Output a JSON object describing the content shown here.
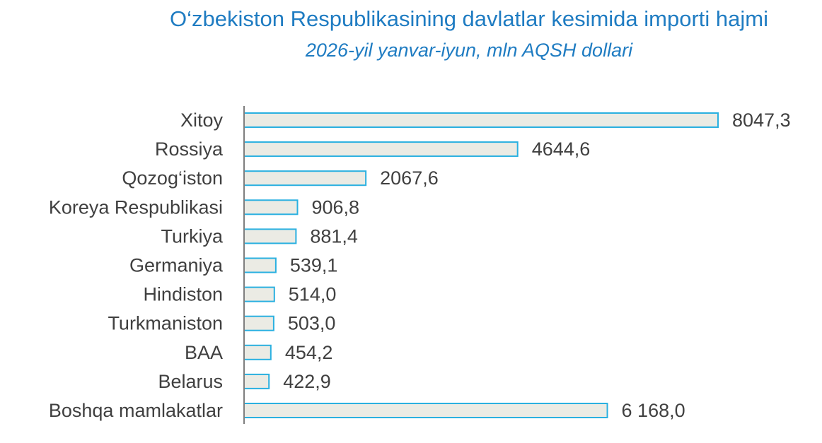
{
  "chart_data": {
    "type": "bar",
    "orientation": "horizontal",
    "title": "O‘zbekiston Respublikasining davlatlar kesimida importi hajmi",
    "subtitle": "2026-yil yanvar-iyun, mln AQSH dollari",
    "categories": [
      "Xitoy",
      "Rossiya",
      "Qozog‘iston",
      "Koreya Respublikasi",
      "Turkiya",
      "Germaniya",
      "Hindiston",
      "Turkmaniston",
      "BAA",
      "Belarus",
      "Boshqa mamlakatlar"
    ],
    "values": [
      8047.3,
      4644.6,
      2067.6,
      906.8,
      881.4,
      539.1,
      514.0,
      503.0,
      454.2,
      422.9,
      6168.0
    ],
    "value_labels": [
      "8047,3",
      "4644,6",
      "2067,6",
      "906,8",
      "881,4",
      "539,1",
      "514,0",
      "503,0",
      "454,2",
      "422,9",
      "6 168,0"
    ],
    "xlim": [
      0,
      8047.3
    ],
    "grid": false,
    "legend": "none",
    "colors": {
      "bar_fill": "#ebebe4",
      "bar_stroke": "#2ab0e0",
      "title": "#1f7cc2",
      "text": "#404040",
      "axis": "#7f7f7f"
    }
  }
}
